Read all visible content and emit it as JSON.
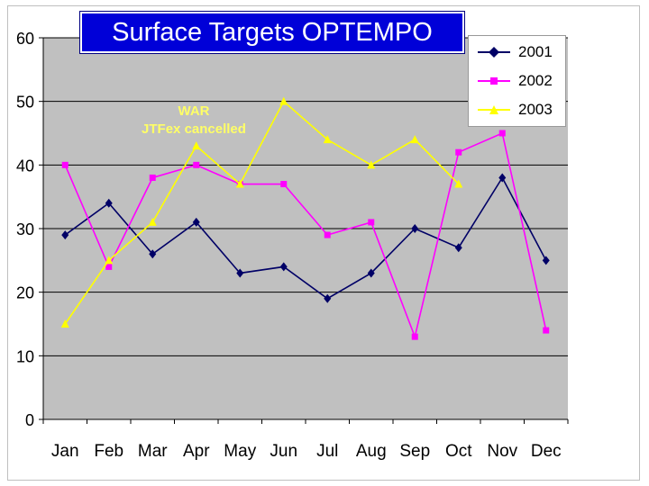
{
  "chart_data": {
    "type": "line",
    "title": "Surface Targets OPTEMPO",
    "annotation": {
      "lines": [
        "WAR",
        "JTFex cancelled"
      ],
      "color": "#ffff66"
    },
    "categories": [
      "Jan",
      "Feb",
      "Mar",
      "Apr",
      "May",
      "Jun",
      "Jul",
      "Aug",
      "Sep",
      "Oct",
      "Nov",
      "Dec"
    ],
    "series": [
      {
        "name": "2001",
        "color": "#000066",
        "marker": "diamond",
        "values": [
          29,
          34,
          26,
          31,
          23,
          24,
          19,
          23,
          30,
          27,
          38,
          25
        ]
      },
      {
        "name": "2002",
        "color": "#ff00ff",
        "marker": "square",
        "values": [
          40,
          24,
          38,
          40,
          37,
          37,
          29,
          31,
          13,
          42,
          45,
          14
        ]
      },
      {
        "name": "2003",
        "color": "#ffff00",
        "marker": "triangle",
        "values": [
          15,
          25,
          31,
          43,
          37,
          50,
          44,
          40,
          44,
          37,
          null,
          null
        ]
      }
    ],
    "ylim": [
      0,
      60
    ],
    "yticks": [
      "0",
      "10",
      "20",
      "30",
      "40",
      "50",
      "60"
    ],
    "grid": true,
    "plot_background": "#c0c0c0",
    "legend_position": "top-right"
  }
}
